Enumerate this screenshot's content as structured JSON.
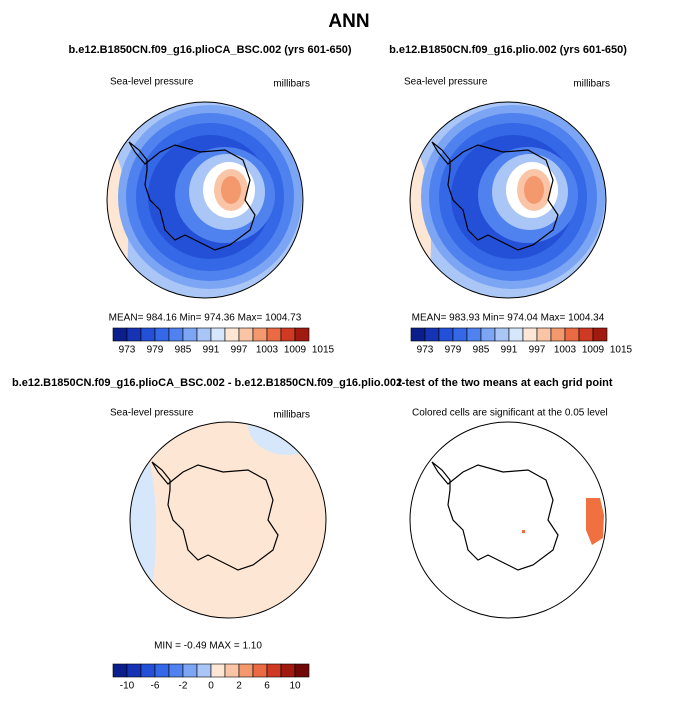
{
  "title": "ANN",
  "panels": [
    {
      "title": "b.e12.B1850CN.f09_g16.plioCA_BSC.002 (yrs 601-650)",
      "left_label": "Sea-level pressure",
      "right_label": "millibars",
      "stats": "MEAN= 984.16   Min= 974.36   Max= 1004.73",
      "colorbar_labels": [
        "973",
        "979",
        "985",
        "991",
        "997",
        "1003",
        "1009",
        "1015"
      ]
    },
    {
      "title": "b.e12.B1850CN.f09_g16.plio.002 (yrs 601-650)",
      "left_label": "Sea-level pressure",
      "right_label": "millibars",
      "stats": "MEAN= 983.93   Min= 974.04   Max= 1004.34",
      "colorbar_labels": [
        "973",
        "979",
        "985",
        "991",
        "997",
        "1003",
        "1009",
        "1015"
      ]
    },
    {
      "title": "b.e12.B1850CN.f09_g16.plioCA_BSC.002 - b.e12.B1850CN.f09_g16.plio.002",
      "left_label": "Sea-level pressure",
      "right_label": "millibars",
      "stats": "MIN =   -0.49  MAX =    1.10",
      "colorbar_labels": [
        "-10",
        "-6",
        "-2",
        "0",
        "2",
        "6",
        "10"
      ]
    },
    {
      "title": "t-test of the two means at each grid point",
      "left_label": "Colored cells are significant at the 0.05 level"
    }
  ]
}
